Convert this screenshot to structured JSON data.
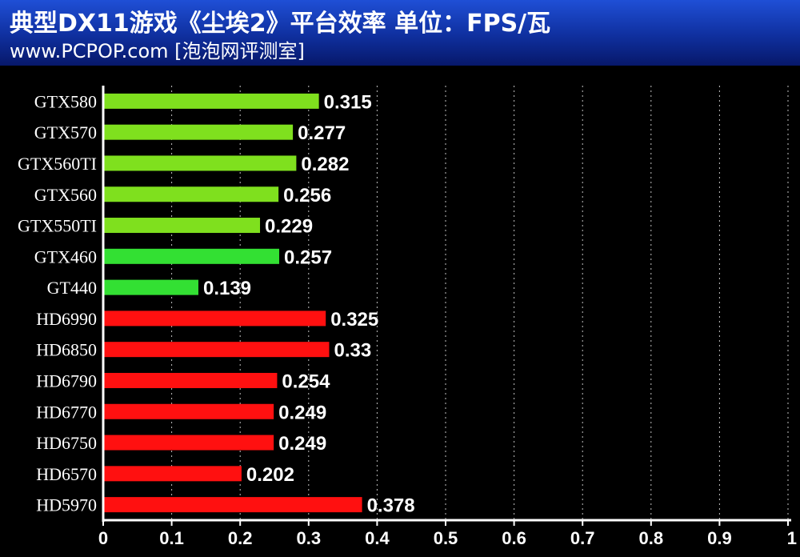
{
  "header": {
    "title": "典型DX11游戏《尘埃2》平台效率 单位：FPS/瓦",
    "subtitle": "www.PCPOP.com [泡泡网评测室]"
  },
  "colors": {
    "background": "#000000",
    "header": "#1840b8",
    "nvidia_bar": "#7fe01e",
    "nvidia_bar_alt": "#33e033",
    "amd_bar": "#ff1010",
    "grid": "#bfbfbf"
  },
  "chart_data": {
    "type": "bar",
    "orientation": "horizontal",
    "title": "典型DX11游戏《尘埃2》平台效率 单位：FPS/瓦",
    "categories": [
      "GTX580",
      "GTX570",
      "GTX560TI",
      "GTX560",
      "GTX550TI",
      "GTX460",
      "GT440",
      "HD6990",
      "HD6850",
      "HD6790",
      "HD6770",
      "HD6750",
      "HD6570",
      "HD5970"
    ],
    "values": [
      0.315,
      0.277,
      0.282,
      0.256,
      0.229,
      0.257,
      0.139,
      0.325,
      0.33,
      0.254,
      0.249,
      0.249,
      0.202,
      0.378
    ],
    "value_labels": [
      "0.315",
      "0.277",
      "0.282",
      "0.256",
      "0.229",
      "0.257",
      "0.139",
      "0.325",
      "0.33",
      "0.254",
      "0.249",
      "0.249",
      "0.202",
      "0.378"
    ],
    "bar_colors": [
      "#7fe01e",
      "#7fe01e",
      "#7fe01e",
      "#7fe01e",
      "#7fe01e",
      "#33e033",
      "#33e033",
      "#ff1010",
      "#ff1010",
      "#ff1010",
      "#ff1010",
      "#ff1010",
      "#ff1010",
      "#ff1010"
    ],
    "xlim": [
      0,
      1
    ],
    "xticks": [
      "0",
      "0.1",
      "0.2",
      "0.3",
      "0.4",
      "0.5",
      "0.6",
      "0.7",
      "0.8",
      "0.9",
      "1"
    ],
    "xlabel": "",
    "ylabel": "",
    "grid": "vertical dotted",
    "legend": "none"
  }
}
